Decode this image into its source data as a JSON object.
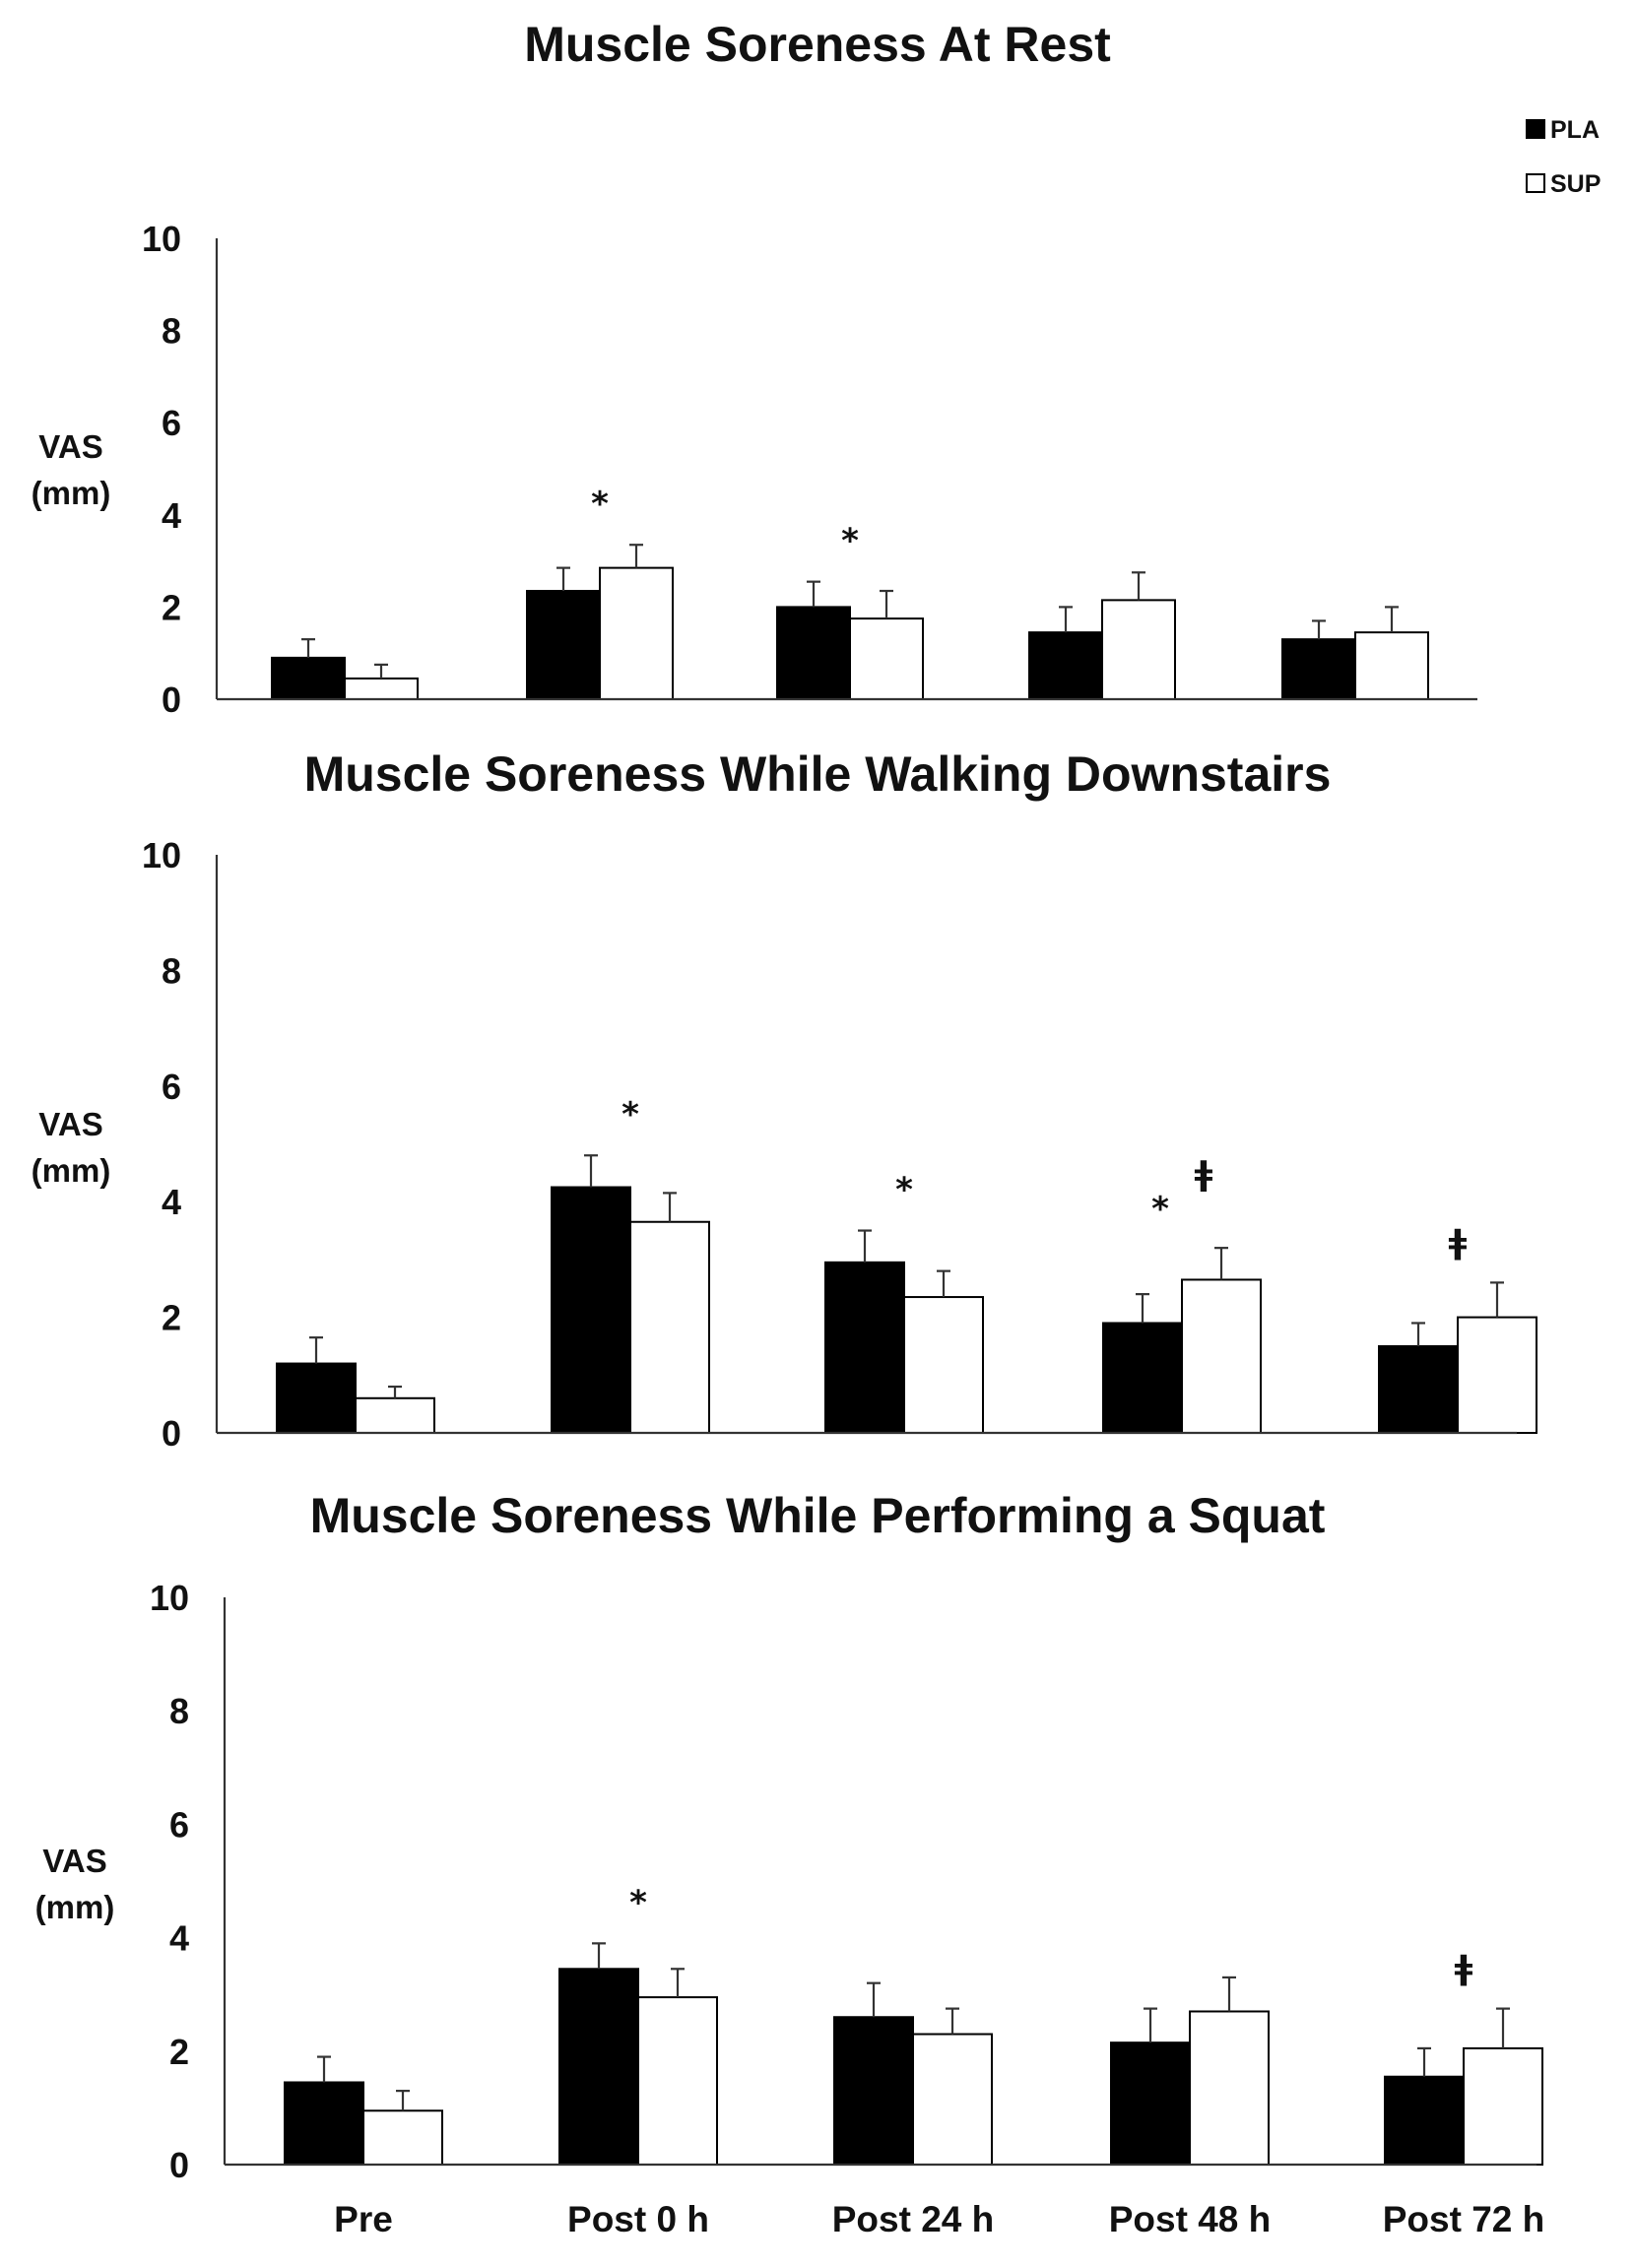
{
  "legend": [
    {
      "name": "PLA",
      "color": "#000000"
    },
    {
      "name": "SUP",
      "color": "#ffffff"
    }
  ],
  "categories": [
    "Pre",
    "Post 0 h",
    "Post 24 h",
    "Post 48 h",
    "Post 72 h"
  ],
  "chart_data": [
    {
      "type": "bar",
      "title": "Muscle Soreness At Rest",
      "ylabel": [
        "VAS",
        "(mm)"
      ],
      "yticks": [
        "0",
        "2",
        "4",
        "6",
        "8",
        "10"
      ],
      "ylim": [
        0,
        10
      ],
      "categories": [
        "Pre",
        "Post 0 h",
        "Post 24 h",
        "Post 48 h",
        "Post 72 h"
      ],
      "series": [
        {
          "name": "PLA",
          "values": [
            0.9,
            2.35,
            2.0,
            1.45,
            1.3
          ],
          "errors": [
            0.4,
            0.5,
            0.55,
            0.55,
            0.4
          ]
        },
        {
          "name": "SUP",
          "values": [
            0.45,
            2.85,
            1.75,
            2.15,
            1.45
          ],
          "errors": [
            0.3,
            0.5,
            0.6,
            0.6,
            0.55
          ]
        }
      ],
      "annotations": [
        {
          "category": 1,
          "text": "*"
        },
        {
          "category": 2,
          "text": "*"
        }
      ]
    },
    {
      "type": "bar",
      "title": "Muscle Soreness While Walking Downstairs",
      "ylabel": [
        "VAS",
        "(mm)"
      ],
      "yticks": [
        "0",
        "2",
        "4",
        "6",
        "8",
        "10"
      ],
      "ylim": [
        0,
        10
      ],
      "categories": [
        "Pre",
        "Post 0 h",
        "Post 24 h",
        "Post 48 h",
        "Post 72 h"
      ],
      "series": [
        {
          "name": "PLA",
          "values": [
            1.2,
            4.25,
            2.95,
            1.9,
            1.5
          ],
          "errors": [
            0.45,
            0.55,
            0.55,
            0.5,
            0.4
          ]
        },
        {
          "name": "SUP",
          "values": [
            0.6,
            3.65,
            2.35,
            2.65,
            2.0
          ],
          "errors": [
            0.2,
            0.5,
            0.45,
            0.55,
            0.6
          ]
        }
      ],
      "annotations": [
        {
          "category": 1,
          "text": "*"
        },
        {
          "category": 2,
          "text": "*"
        },
        {
          "category": 3,
          "text": "*"
        },
        {
          "category": 3,
          "text": "ǂ"
        },
        {
          "category": 4,
          "text": "ǂ"
        }
      ]
    },
    {
      "type": "bar",
      "title": "Muscle Soreness While Performing a Squat",
      "ylabel": [
        "VAS",
        "(mm)"
      ],
      "yticks": [
        "0",
        "2",
        "4",
        "6",
        "8",
        "10"
      ],
      "ylim": [
        0,
        10
      ],
      "categories": [
        "Pre",
        "Post 0 h",
        "Post 24 h",
        "Post 48 h",
        "Post 72 h"
      ],
      "series": [
        {
          "name": "PLA",
          "values": [
            1.45,
            3.45,
            2.6,
            2.15,
            1.55
          ],
          "errors": [
            0.45,
            0.45,
            0.6,
            0.6,
            0.5
          ]
        },
        {
          "name": "SUP",
          "values": [
            0.95,
            2.95,
            2.3,
            2.7,
            2.05
          ],
          "errors": [
            0.35,
            0.5,
            0.45,
            0.6,
            0.7
          ]
        }
      ],
      "annotations": [
        {
          "category": 1,
          "text": "*"
        },
        {
          "category": 4,
          "text": "ǂ"
        }
      ]
    }
  ]
}
